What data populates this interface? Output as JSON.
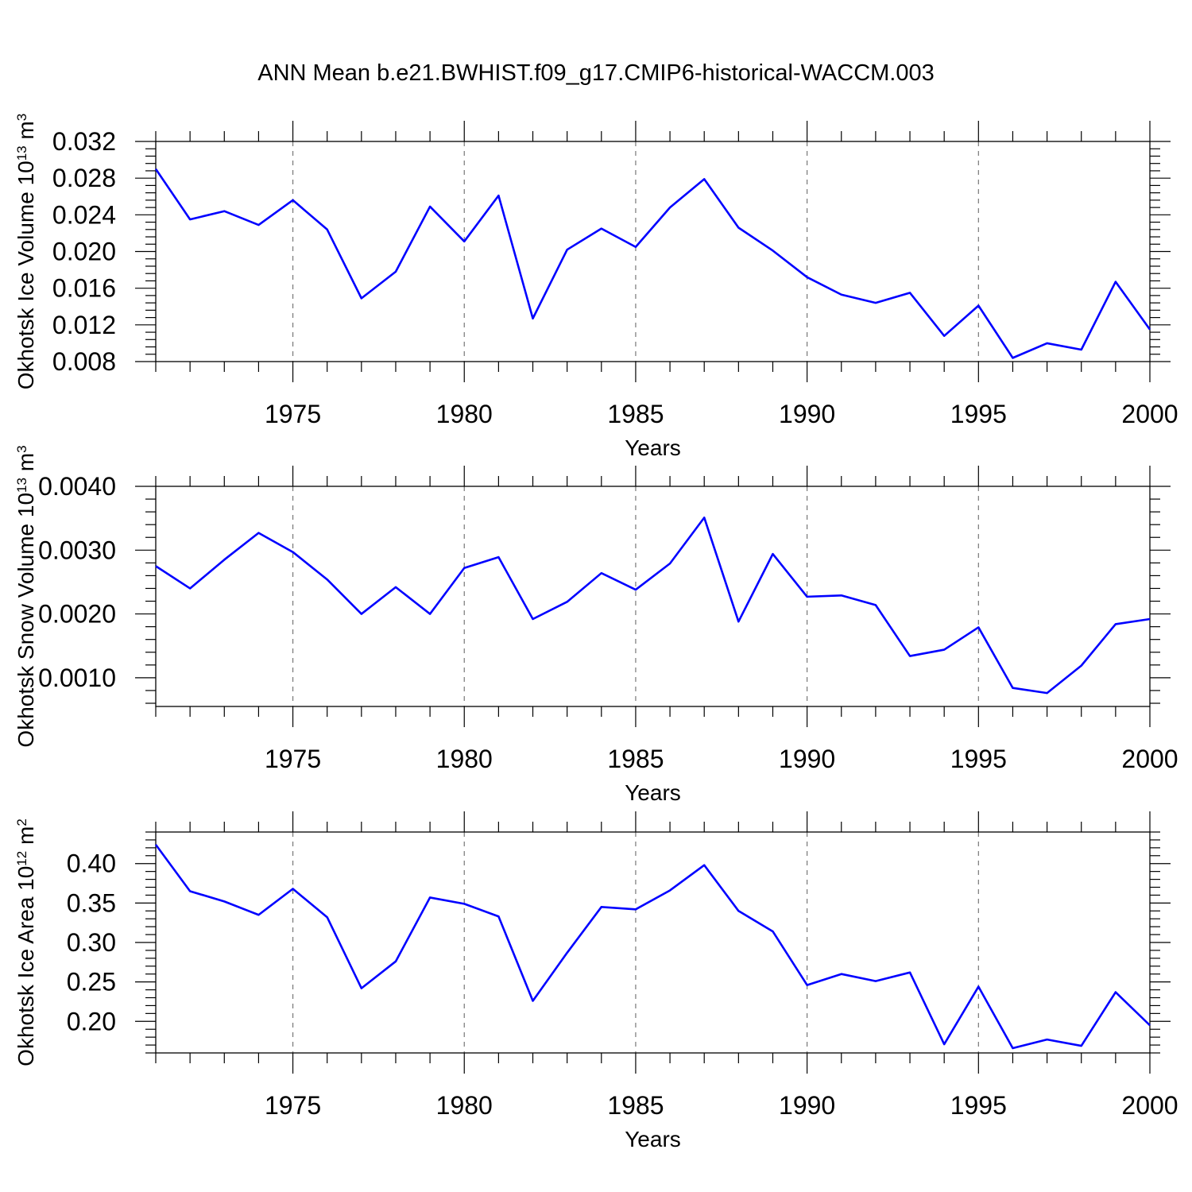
{
  "figure_title": "ANN Mean b.e21.BWHIST.f09_g17.CMIP6-historical-WACCM.003",
  "colors": {
    "series": "#0000ff",
    "axes": "#000000",
    "grid": "#777777"
  },
  "chart_data": [
    {
      "type": "line",
      "ylabel": {
        "main": "Okhotsk Ice Volume 10",
        "sup": "13",
        "unit": " m",
        "unit_sup": "3"
      },
      "xlabel": "Years",
      "xlim": [
        1971,
        2000
      ],
      "ylim": [
        0.008,
        0.032
      ],
      "x_ticks": [
        1975,
        1980,
        1985,
        1990,
        1995,
        2000
      ],
      "y_ticks": [
        0.008,
        0.012,
        0.016,
        0.02,
        0.024,
        0.028,
        0.032
      ],
      "y_tick_labels": [
        "0.008",
        "0.012",
        "0.016",
        "0.020",
        "0.024",
        "0.028",
        "0.032"
      ],
      "grid": "vertical dashed at major x ticks",
      "x": [
        1971,
        1972,
        1973,
        1974,
        1975,
        1976,
        1977,
        1978,
        1979,
        1980,
        1981,
        1982,
        1983,
        1984,
        1985,
        1986,
        1987,
        1988,
        1989,
        1990,
        1991,
        1992,
        1993,
        1994,
        1995,
        1996,
        1997,
        1998,
        1999,
        2000
      ],
      "series": [
        {
          "values": [
            0.029,
            0.0235,
            0.0244,
            0.0229,
            0.0256,
            0.0224,
            0.0149,
            0.0178,
            0.0249,
            0.0211,
            0.0261,
            0.0127,
            0.0202,
            0.0225,
            0.0205,
            0.0248,
            0.0279,
            0.0226,
            0.0201,
            0.0172,
            0.0153,
            0.0144,
            0.0155,
            0.0108,
            0.0141,
            0.0084,
            0.01,
            0.0093,
            0.0167,
            0.0115
          ]
        }
      ]
    },
    {
      "type": "line",
      "ylabel": {
        "main": "Okhotsk Snow Volume 10",
        "sup": "13",
        "unit": " m",
        "unit_sup": "3"
      },
      "xlabel": "Years",
      "xlim": [
        1971,
        2000
      ],
      "ylim": [
        0.00055,
        0.004
      ],
      "x_ticks": [
        1975,
        1980,
        1985,
        1990,
        1995,
        2000
      ],
      "y_ticks": [
        0.001,
        0.002,
        0.003,
        0.004
      ],
      "y_tick_labels": [
        "0.0010",
        "0.0020",
        "0.0030",
        "0.0040"
      ],
      "grid": "vertical dashed at major x ticks",
      "x": [
        1971,
        1972,
        1973,
        1974,
        1975,
        1976,
        1977,
        1978,
        1979,
        1980,
        1981,
        1982,
        1983,
        1984,
        1985,
        1986,
        1987,
        1988,
        1989,
        1990,
        1991,
        1992,
        1993,
        1994,
        1995,
        1996,
        1997,
        1998,
        1999,
        2000
      ],
      "series": [
        {
          "values": [
            0.00275,
            0.0024,
            0.00285,
            0.00327,
            0.00297,
            0.00254,
            0.002,
            0.00242,
            0.002,
            0.00272,
            0.00289,
            0.00192,
            0.00219,
            0.00264,
            0.00238,
            0.00279,
            0.00351,
            0.00188,
            0.00294,
            0.00227,
            0.00229,
            0.00214,
            0.00134,
            0.00144,
            0.00179,
            0.00084,
            0.00076,
            0.00119,
            0.00184,
            0.00192
          ]
        }
      ]
    },
    {
      "type": "line",
      "ylabel": {
        "main": "Okhotsk Ice Area 10",
        "sup": "12",
        "unit": " m",
        "unit_sup": "2"
      },
      "xlabel": "Years",
      "xlim": [
        1971,
        2000
      ],
      "ylim": [
        0.16,
        0.44
      ],
      "x_ticks": [
        1975,
        1980,
        1985,
        1990,
        1995,
        2000
      ],
      "y_ticks": [
        0.2,
        0.25,
        0.3,
        0.35,
        0.4
      ],
      "y_tick_labels": [
        "0.20",
        "0.25",
        "0.30",
        "0.35",
        "0.40"
      ],
      "grid": "vertical dashed at major x ticks",
      "x": [
        1971,
        1972,
        1973,
        1974,
        1975,
        1976,
        1977,
        1978,
        1979,
        1980,
        1981,
        1982,
        1983,
        1984,
        1985,
        1986,
        1987,
        1988,
        1989,
        1990,
        1991,
        1992,
        1993,
        1994,
        1995,
        1996,
        1997,
        1998,
        1999,
        2000
      ],
      "series": [
        {
          "values": [
            0.424,
            0.365,
            0.352,
            0.335,
            0.368,
            0.332,
            0.242,
            0.276,
            0.357,
            0.349,
            0.333,
            0.226,
            0.287,
            0.345,
            0.342,
            0.366,
            0.398,
            0.34,
            0.314,
            0.246,
            0.26,
            0.251,
            0.262,
            0.171,
            0.244,
            0.166,
            0.177,
            0.169,
            0.237,
            0.195
          ]
        }
      ]
    }
  ]
}
